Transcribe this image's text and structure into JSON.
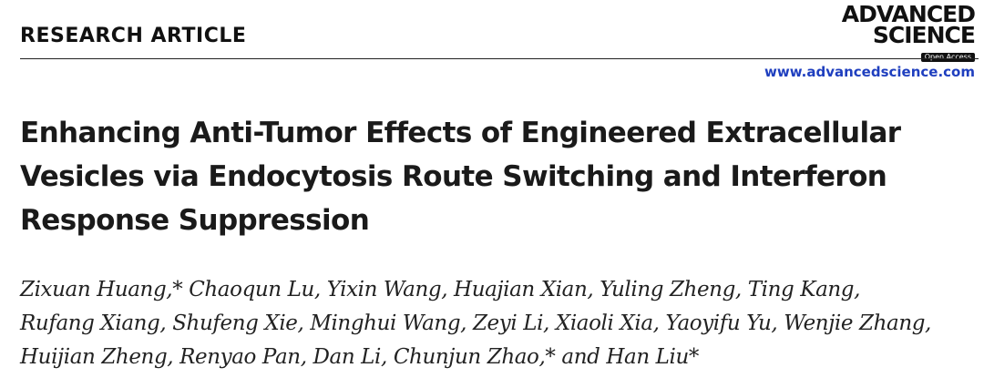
{
  "header": {
    "section_label": "RESEARCH ARTICLE",
    "logo_line1": "ADVANCED",
    "logo_line2": "SCIENCE",
    "logo_badge": "Open Access",
    "journal_url": "www.advancedscience.com"
  },
  "article": {
    "title_lines": [
      "Enhancing Anti-Tumor Effects of Engineered Extracellular",
      "Vesicles via Endocytosis Route Switching and Interferon",
      "Response Suppression"
    ],
    "author_lines": [
      "Zixuan Huang,* Chaoqun Lu, Yixin Wang, Huajian Xian, Yuling Zheng, Ting Kang,",
      "Rufang Xiang, Shufeng Xie, Minghui Wang, Zeyi Li, Xiaoli Xia, Yaoyifu Yu, Wenjie Zhang,",
      "Huijian Zheng, Renyao Pan, Dan Li, Chunjun Zhao,* and Han Liu*"
    ]
  },
  "colors": {
    "text": "#1a1a1a",
    "link": "#1f3fbf",
    "rule": "#222222"
  }
}
